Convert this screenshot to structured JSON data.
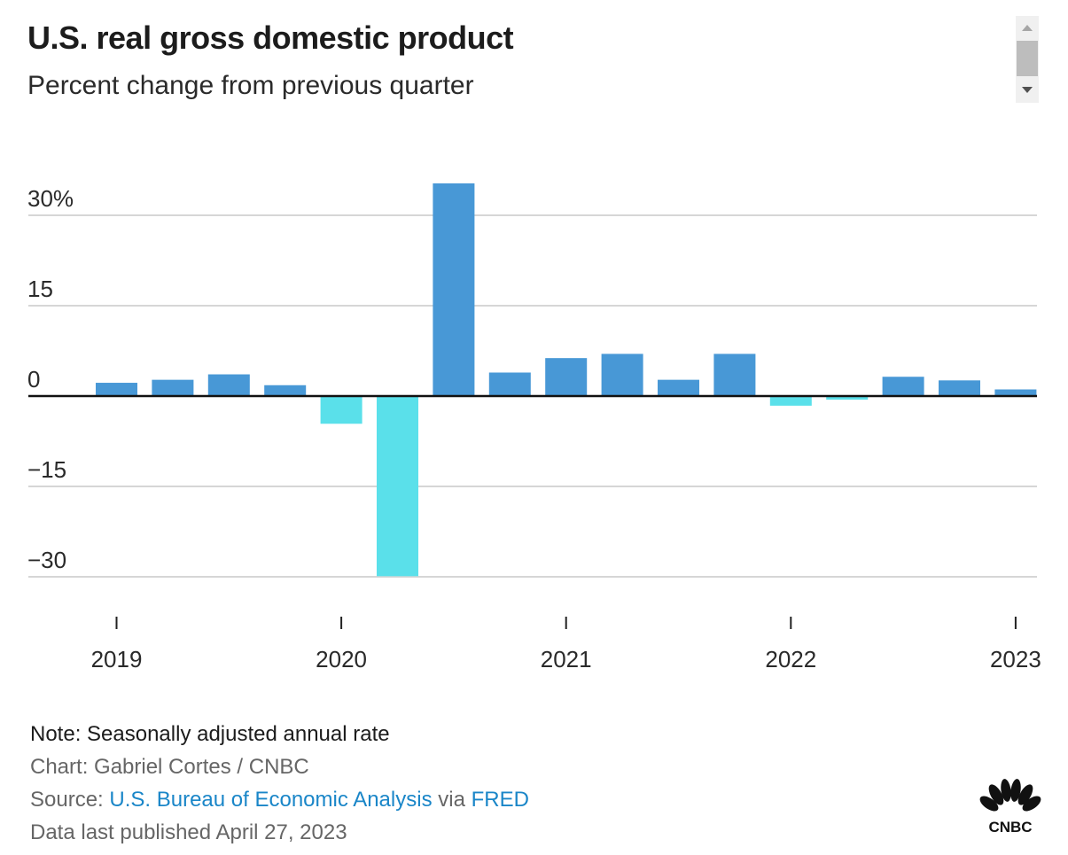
{
  "header": {
    "title": "U.S. real gross domestic product",
    "subtitle": "Percent change from previous quarter"
  },
  "scrollbar": {
    "up_icon": "triangle-up",
    "down_icon": "triangle-down"
  },
  "chart_data": {
    "type": "bar",
    "title": "U.S. real gross domestic product",
    "subtitle": "Percent change from previous quarter",
    "xlabel": "",
    "ylabel": "Percent change",
    "ylim": [
      -30,
      35.3
    ],
    "yticks": [
      30,
      15,
      0,
      -15,
      -30
    ],
    "ytick_labels": [
      "30%",
      "15",
      "0",
      "−15",
      "−30"
    ],
    "grid": true,
    "categories": [
      "2019 Q1",
      "2019 Q2",
      "2019 Q3",
      "2019 Q4",
      "2020 Q1",
      "2020 Q2",
      "2020 Q3",
      "2020 Q4",
      "2021 Q1",
      "2021 Q2",
      "2021 Q3",
      "2021 Q4",
      "2022 Q1",
      "2022 Q2",
      "2022 Q3",
      "2022 Q4",
      "2023 Q1"
    ],
    "values": [
      2.2,
      2.7,
      3.6,
      1.8,
      -4.6,
      -29.9,
      35.3,
      3.9,
      6.3,
      7.0,
      2.7,
      7.0,
      -1.6,
      -0.6,
      3.2,
      2.6,
      1.1
    ],
    "xtick_labels": [
      "2019",
      "2020",
      "2021",
      "2022",
      "2023"
    ],
    "xtick_positions": [
      "2019 Q1",
      "2020 Q1",
      "2021 Q1",
      "2022 Q1",
      "2023 Q1"
    ],
    "colors": {
      "positive": "#4898d6",
      "negative": "#5ae0ea",
      "zero_line": "#111111",
      "grid": "#d6d6d6"
    }
  },
  "footer": {
    "note": "Note: Seasonally adjusted annual rate",
    "chart_credit": "Chart: Gabriel Cortes / CNBC",
    "source_prefix": "Source: ",
    "source_link": "U.S. Bureau of Economic Analysis",
    "source_via": " via ",
    "source_link2": "FRED",
    "published": "Data last published April 27, 2023"
  },
  "logo": {
    "text": "CNBC",
    "icon": "peacock-icon"
  }
}
